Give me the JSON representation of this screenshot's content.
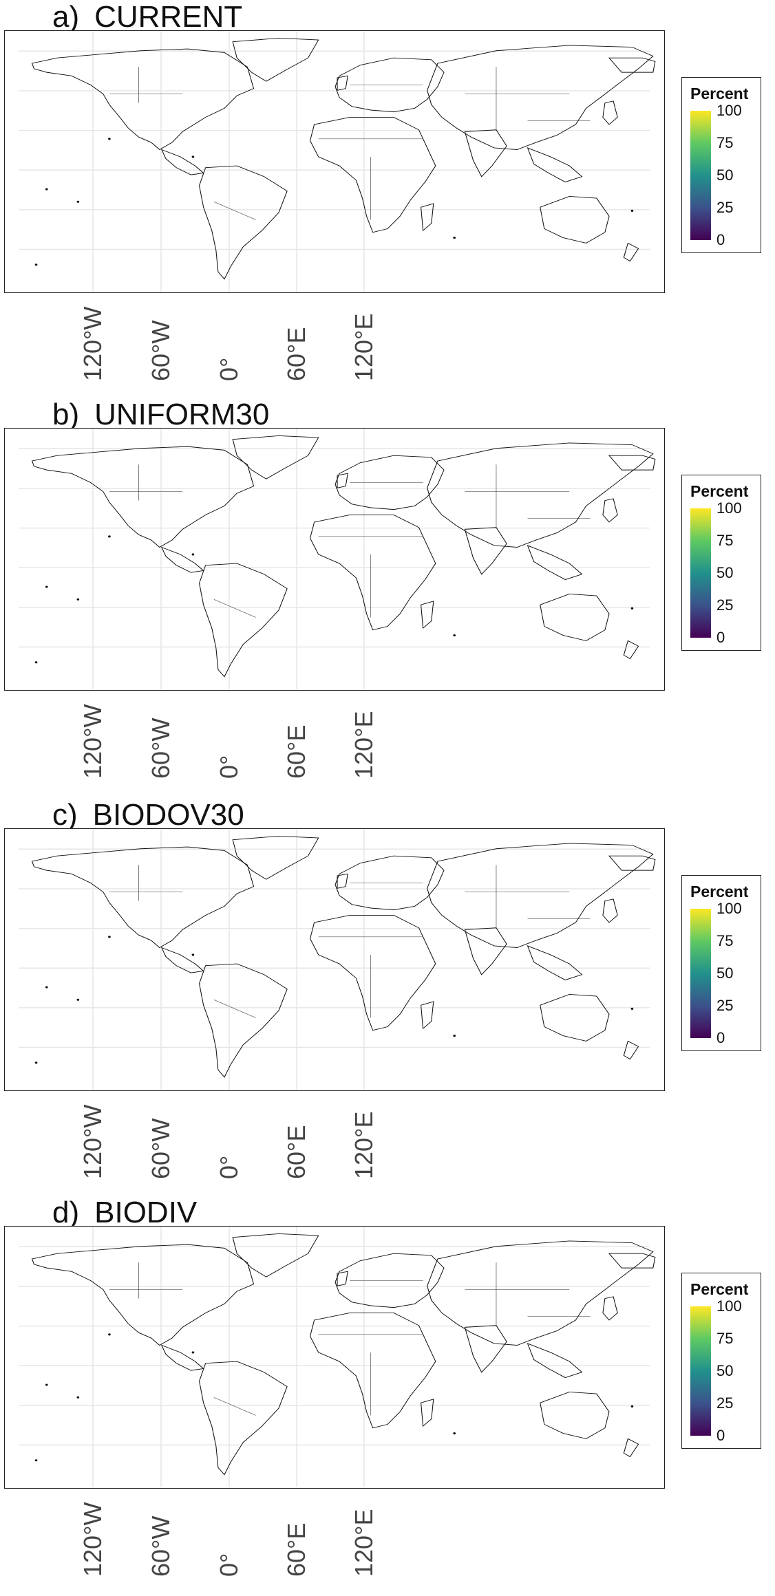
{
  "panels": [
    {
      "letter": "a)",
      "name": "CURRENT",
      "id": "current"
    },
    {
      "letter": "b)",
      "name": "UNIFORM30",
      "id": "uniform30"
    },
    {
      "letter": "c)",
      "name": "BIODOV30",
      "id": "biodov30"
    },
    {
      "letter": "d)",
      "name": "BIODIV",
      "id": "biodiv"
    }
  ],
  "x_ticks": [
    "120°W",
    "60°W",
    "0°",
    "60°E",
    "120°E"
  ],
  "legend": {
    "title": "Percent",
    "ticks": [
      "100",
      "75",
      "50",
      "25",
      "0"
    ]
  },
  "colors": {
    "scale": [
      "#440154",
      "#3b528b",
      "#21918c",
      "#5ec962",
      "#fde725"
    ],
    "high_latitude_arctic": "#000000",
    "grid": "#e6e6e6",
    "border": "#222222"
  }
}
